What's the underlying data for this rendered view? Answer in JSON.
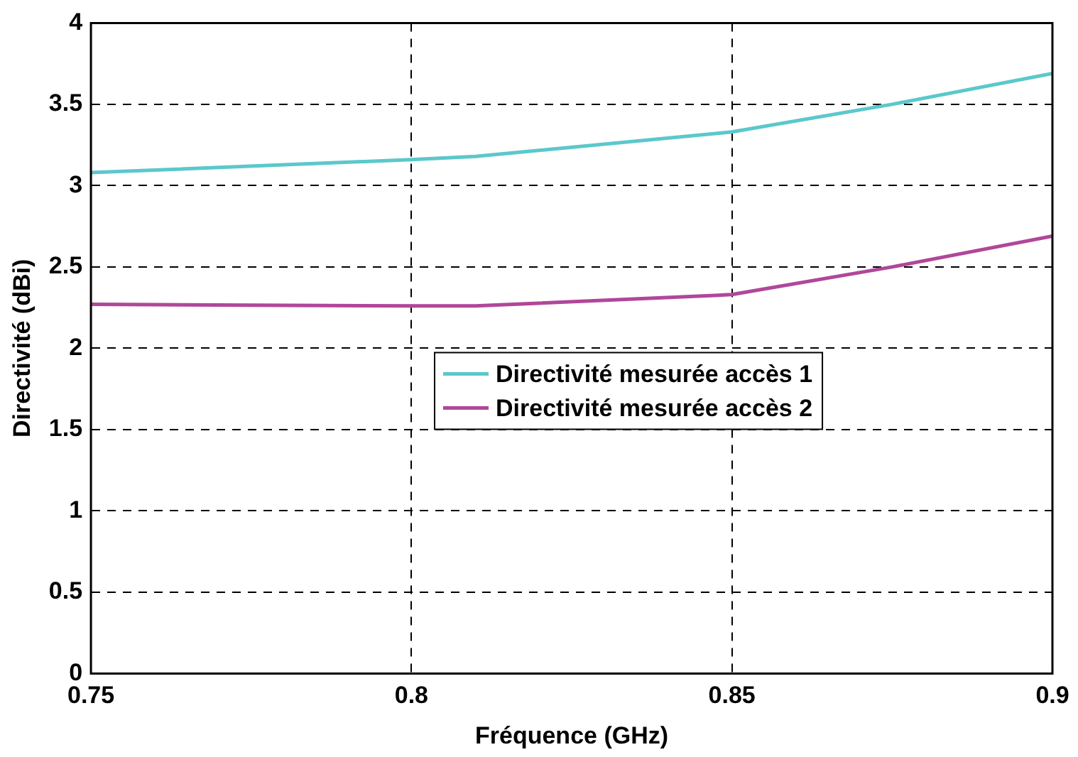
{
  "chart_data": {
    "type": "line",
    "xlabel": "Fréquence (GHz)",
    "ylabel": "Directivité (dBi)",
    "xlim": [
      0.75,
      0.9
    ],
    "xticks": [
      0.75,
      0.8,
      0.85,
      0.9
    ],
    "ylim": [
      0,
      4
    ],
    "yticks": [
      0,
      0.5,
      1,
      1.5,
      2,
      2.5,
      3,
      3.5,
      4
    ],
    "grid": true,
    "legend": "center",
    "marker": "none",
    "line_style": "solid",
    "x": [
      0.75,
      0.8,
      0.81,
      0.85,
      0.875,
      0.9
    ],
    "series": [
      {
        "name": "Directivité mesurée accès 1",
        "color": "#5bc8cc",
        "values": [
          3.08,
          3.16,
          3.18,
          3.33,
          3.5,
          3.69
        ]
      },
      {
        "name": "Directivité mesurée accès 2",
        "color": "#b0479a",
        "values": [
          2.27,
          2.26,
          2.26,
          2.33,
          2.5,
          2.69
        ]
      }
    ]
  }
}
